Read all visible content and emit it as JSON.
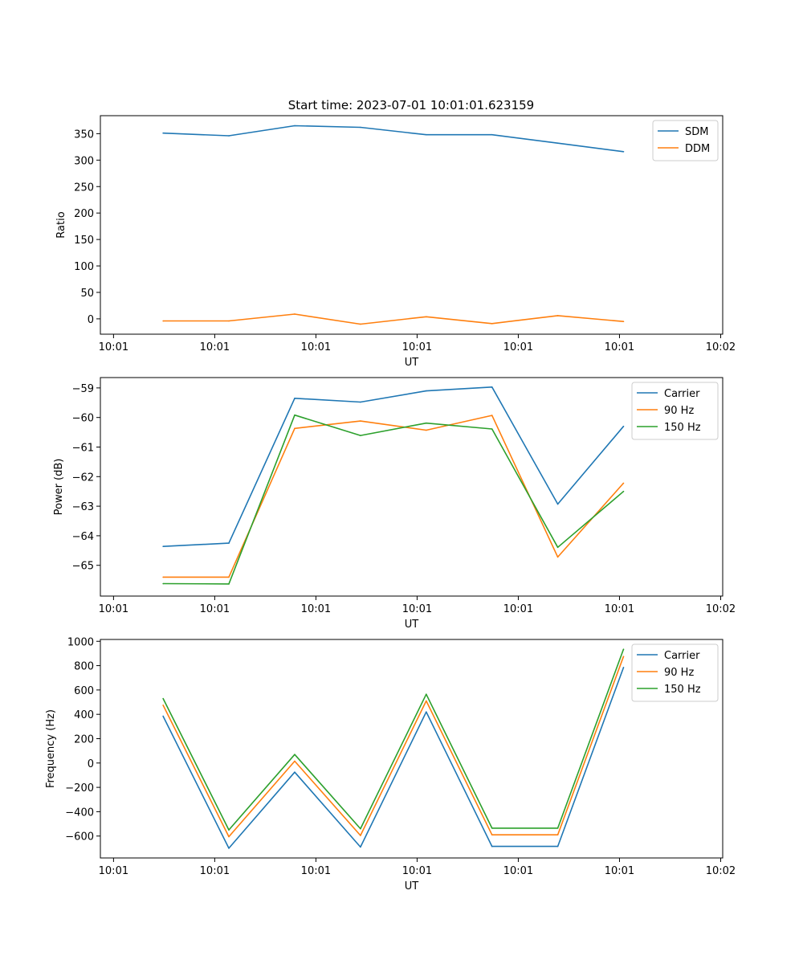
{
  "figure": {
    "title": "Start time: 2023-07-01 10:01:01.623159"
  },
  "chart_data": [
    {
      "type": "line",
      "xlabel": "UT",
      "ylabel": "Ratio",
      "x_tick_labels": [
        "10:01",
        "10:01",
        "10:01",
        "10:01",
        "10:01",
        "10:01",
        "10:02"
      ],
      "xlim": [
        -0.13,
        6.02
      ],
      "ylim": [
        -29,
        384
      ],
      "y_ticks": [
        0,
        50,
        100,
        150,
        200,
        250,
        300,
        350
      ],
      "legend": "top-right",
      "x": [
        0.49,
        1.14,
        1.79,
        2.44,
        3.09,
        3.74,
        4.39,
        5.04
      ],
      "series": [
        {
          "name": "SDM",
          "color": "#1f77b4",
          "values": [
            351,
            346,
            365,
            362,
            348,
            348,
            332,
            316
          ]
        },
        {
          "name": "DDM",
          "color": "#ff7f0e",
          "values": [
            -4,
            -4,
            9,
            -10,
            4,
            -9,
            6,
            -5
          ]
        }
      ]
    },
    {
      "type": "line",
      "xlabel": "UT",
      "ylabel": "Power (dB)",
      "x_tick_labels": [
        "10:01",
        "10:01",
        "10:01",
        "10:01",
        "10:01",
        "10:01",
        "10:02"
      ],
      "xlim": [
        -0.13,
        6.02
      ],
      "ylim": [
        -66.04,
        -58.65
      ],
      "y_ticks": [
        -65,
        -64,
        -63,
        -62,
        -61,
        -60,
        -59
      ],
      "legend": "top-right",
      "x": [
        0.49,
        1.14,
        1.79,
        2.44,
        3.09,
        3.74,
        4.39,
        5.04
      ],
      "series": [
        {
          "name": "Carrier",
          "color": "#1f77b4",
          "values": [
            -64.36,
            -64.25,
            -59.35,
            -59.48,
            -59.1,
            -58.97,
            -62.93,
            -60.3
          ]
        },
        {
          "name": "90 Hz",
          "color": "#ff7f0e",
          "values": [
            -65.4,
            -65.4,
            -60.37,
            -60.12,
            -60.43,
            -59.93,
            -64.72,
            -62.22
          ]
        },
        {
          "name": "150 Hz",
          "color": "#2ca02c",
          "values": [
            -65.62,
            -65.63,
            -59.92,
            -60.61,
            -60.19,
            -60.39,
            -64.39,
            -62.5
          ]
        }
      ]
    },
    {
      "type": "line",
      "xlabel": "UT",
      "ylabel": "Frequency (Hz)",
      "x_tick_labels": [
        "10:01",
        "10:01",
        "10:01",
        "10:01",
        "10:01",
        "10:01",
        "10:02"
      ],
      "xlim": [
        -0.13,
        6.02
      ],
      "ylim": [
        -780,
        1015
      ],
      "y_ticks": [
        -600,
        -400,
        -200,
        0,
        200,
        400,
        600,
        800,
        1000
      ],
      "legend": "top-right",
      "x": [
        0.49,
        1.14,
        1.79,
        2.44,
        3.09,
        3.74,
        4.39,
        5.04
      ],
      "series": [
        {
          "name": "Carrier",
          "color": "#1f77b4",
          "values": [
            385,
            -700,
            -75,
            -690,
            420,
            -685,
            -685,
            785
          ]
        },
        {
          "name": "90 Hz",
          "color": "#ff7f0e",
          "values": [
            475,
            -605,
            15,
            -595,
            510,
            -590,
            -590,
            875
          ]
        },
        {
          "name": "150 Hz",
          "color": "#2ca02c",
          "values": [
            530,
            -550,
            70,
            -540,
            565,
            -535,
            -535,
            935
          ]
        }
      ]
    }
  ]
}
